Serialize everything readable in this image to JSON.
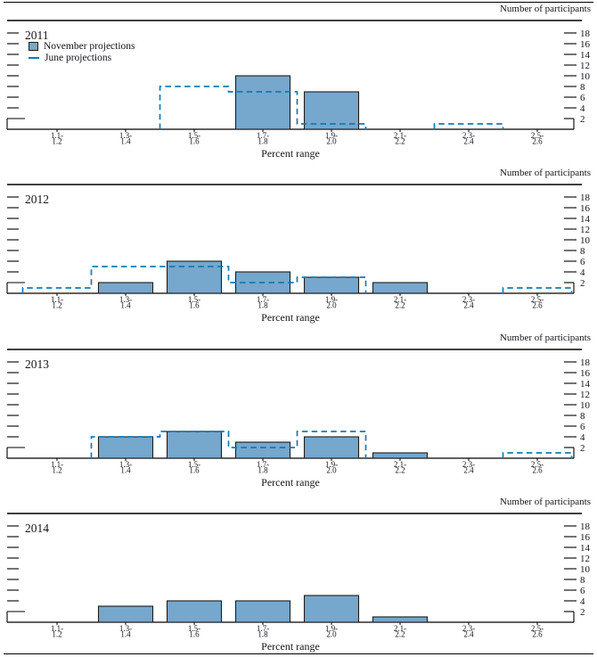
{
  "page": {
    "y_axis_title": "Number of participants",
    "x_axis_title": "Percent range"
  },
  "legend": {
    "november": "November projections",
    "june": "June projections"
  },
  "colors": {
    "bar_fill": "#76A7CD",
    "bar_border": "#1d1d1d",
    "june_line": "#1579B1",
    "axis": "#000000",
    "text": "#14141c"
  },
  "chart_data": [
    {
      "type": "bar",
      "title": "2011",
      "ylabel": "Number of participants",
      "xlabel": "Percent range",
      "ylim": [
        0,
        20
      ],
      "yticks": [
        2,
        4,
        6,
        8,
        10,
        12,
        14,
        16,
        18
      ],
      "legend_visible": true,
      "categories": [
        [
          "1.1-",
          "1.2"
        ],
        [
          "1.3-",
          "1.4"
        ],
        [
          "1.5-",
          "1.6"
        ],
        [
          "1.7-",
          "1.8"
        ],
        [
          "1.9-",
          "2.0"
        ],
        [
          "2.1-",
          "2.2"
        ],
        [
          "2.3-",
          "2.4"
        ],
        [
          "2.5-",
          "2.6"
        ]
      ],
      "series": [
        {
          "name": "November projections",
          "style": "bar",
          "values": [
            0,
            0,
            0,
            10,
            7,
            0,
            0,
            0
          ]
        },
        {
          "name": "June projections",
          "style": "dashed-step",
          "values": [
            0,
            0,
            8,
            7,
            1,
            0,
            1,
            0
          ]
        }
      ]
    },
    {
      "type": "bar",
      "title": "2012",
      "ylabel": "Number of participants",
      "xlabel": "Percent range",
      "ylim": [
        0,
        20
      ],
      "yticks": [
        2,
        4,
        6,
        8,
        10,
        12,
        14,
        16,
        18
      ],
      "legend_visible": false,
      "categories": [
        [
          "1.1-",
          "1.2"
        ],
        [
          "1.3-",
          "1.4"
        ],
        [
          "1.5-",
          "1.6"
        ],
        [
          "1.7-",
          "1.8"
        ],
        [
          "1.9-",
          "2.0"
        ],
        [
          "2.1-",
          "2.2"
        ],
        [
          "2.3-",
          "2.4"
        ],
        [
          "2.5-",
          "2.6"
        ]
      ],
      "series": [
        {
          "name": "November projections",
          "style": "bar",
          "values": [
            0,
            2,
            6,
            4,
            3,
            2,
            0,
            0
          ]
        },
        {
          "name": "June projections",
          "style": "dashed-step",
          "values": [
            1,
            5,
            5,
            2,
            3,
            0,
            0,
            1
          ]
        }
      ]
    },
    {
      "type": "bar",
      "title": "2013",
      "ylabel": "Number of participants",
      "xlabel": "Percent range",
      "ylim": [
        0,
        20
      ],
      "yticks": [
        2,
        4,
        6,
        8,
        10,
        12,
        14,
        16,
        18
      ],
      "legend_visible": false,
      "categories": [
        [
          "1.1-",
          "1.2"
        ],
        [
          "1.3-",
          "1.4"
        ],
        [
          "1.5-",
          "1.6"
        ],
        [
          "1.7-",
          "1.8"
        ],
        [
          "1.9-",
          "2.0"
        ],
        [
          "2.1-",
          "2.2"
        ],
        [
          "2.3-",
          "2.4"
        ],
        [
          "2.5-",
          "2.6"
        ]
      ],
      "series": [
        {
          "name": "November projections",
          "style": "bar",
          "values": [
            0,
            4,
            5,
            3,
            4,
            1,
            0,
            0
          ]
        },
        {
          "name": "June projections",
          "style": "dashed-step",
          "values": [
            0,
            4,
            5,
            2,
            5,
            0,
            0,
            1
          ]
        }
      ]
    },
    {
      "type": "bar",
      "title": "2014",
      "ylabel": "Number of participants",
      "xlabel": "Percent range",
      "ylim": [
        0,
        20
      ],
      "yticks": [
        2,
        4,
        6,
        8,
        10,
        12,
        14,
        16,
        18
      ],
      "legend_visible": false,
      "categories": [
        [
          "1.1-",
          "1.2"
        ],
        [
          "1.3-",
          "1.4"
        ],
        [
          "1.5-",
          "1.6"
        ],
        [
          "1.7-",
          "1.8"
        ],
        [
          "1.9-",
          "2.0"
        ],
        [
          "2.1-",
          "2.2"
        ],
        [
          "2.3-",
          "2.4"
        ],
        [
          "2.5-",
          "2.6"
        ]
      ],
      "series": [
        {
          "name": "November projections",
          "style": "bar",
          "values": [
            0,
            3,
            4,
            4,
            5,
            1,
            0,
            0
          ]
        }
      ]
    }
  ]
}
